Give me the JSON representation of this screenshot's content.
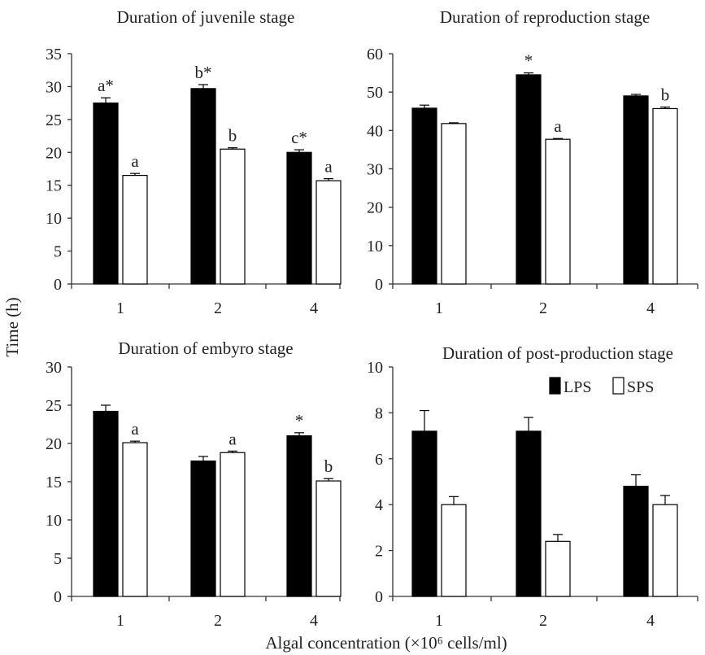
{
  "figure": {
    "ylabel": "Time (h)",
    "xlabel": "Algal concentration (×10⁶ cells/ml)"
  },
  "legend": {
    "entries": [
      {
        "name": "LPS",
        "color": "#000000"
      },
      {
        "name": "SPS",
        "color": "#ffffff"
      }
    ],
    "placement": "top-right of bottom-right panel"
  },
  "colors": {
    "LPS": "#000000",
    "SPS": "#ffffff",
    "axis": "#333333"
  },
  "chart_data": [
    {
      "type": "bar",
      "title": "Duration of juvenile stage",
      "categories": [
        "1",
        "2",
        "4"
      ],
      "ylim": [
        0,
        35
      ],
      "yticks": [
        0,
        5,
        10,
        15,
        20,
        25,
        30,
        35
      ],
      "series": [
        {
          "name": "LPS",
          "values": [
            27.5,
            29.7,
            20.0
          ],
          "errors": [
            0.8,
            0.6,
            0.4
          ],
          "labels": [
            "a*",
            "b*",
            "c*"
          ]
        },
        {
          "name": "SPS",
          "values": [
            16.5,
            20.5,
            15.7
          ],
          "errors": [
            0.3,
            0.2,
            0.3
          ],
          "labels": [
            "a",
            "b",
            "a"
          ]
        }
      ]
    },
    {
      "type": "bar",
      "title": "Duration of reproduction stage",
      "categories": [
        "1",
        "2",
        "4"
      ],
      "ylim": [
        0,
        60
      ],
      "yticks": [
        0,
        10,
        20,
        30,
        40,
        50,
        60
      ],
      "series": [
        {
          "name": "LPS",
          "values": [
            45.8,
            54.5,
            49.0
          ],
          "errors": [
            0.8,
            0.5,
            0.4
          ],
          "labels": [
            "",
            "*",
            ""
          ]
        },
        {
          "name": "SPS",
          "values": [
            41.8,
            37.7,
            45.7
          ],
          "errors": [
            0.2,
            0.2,
            0.4
          ],
          "labels": [
            "",
            "a",
            "b"
          ]
        }
      ]
    },
    {
      "type": "bar",
      "title": "Duration of embyro stage",
      "categories": [
        "1",
        "2",
        "4"
      ],
      "ylim": [
        0,
        30
      ],
      "yticks": [
        0,
        5,
        10,
        15,
        20,
        25,
        30
      ],
      "series": [
        {
          "name": "LPS",
          "values": [
            24.2,
            17.7,
            21.0
          ],
          "errors": [
            0.8,
            0.6,
            0.4
          ],
          "labels": [
            "",
            "",
            "*"
          ]
        },
        {
          "name": "SPS",
          "values": [
            20.1,
            18.8,
            15.1
          ],
          "errors": [
            0.2,
            0.2,
            0.3
          ],
          "labels": [
            "a",
            "a",
            "b"
          ]
        }
      ]
    },
    {
      "type": "bar",
      "title": "Duration of post-production stage",
      "categories": [
        "1",
        "2",
        "4"
      ],
      "ylim": [
        0,
        10
      ],
      "yticks": [
        0,
        2,
        4,
        6,
        8,
        10
      ],
      "series": [
        {
          "name": "LPS",
          "values": [
            7.2,
            7.2,
            4.8
          ],
          "errors": [
            0.9,
            0.6,
            0.5
          ],
          "labels": [
            "",
            "",
            ""
          ]
        },
        {
          "name": "SPS",
          "values": [
            4.0,
            2.4,
            4.0
          ],
          "errors": [
            0.35,
            0.3,
            0.4
          ],
          "labels": [
            "",
            "",
            ""
          ]
        }
      ]
    }
  ]
}
